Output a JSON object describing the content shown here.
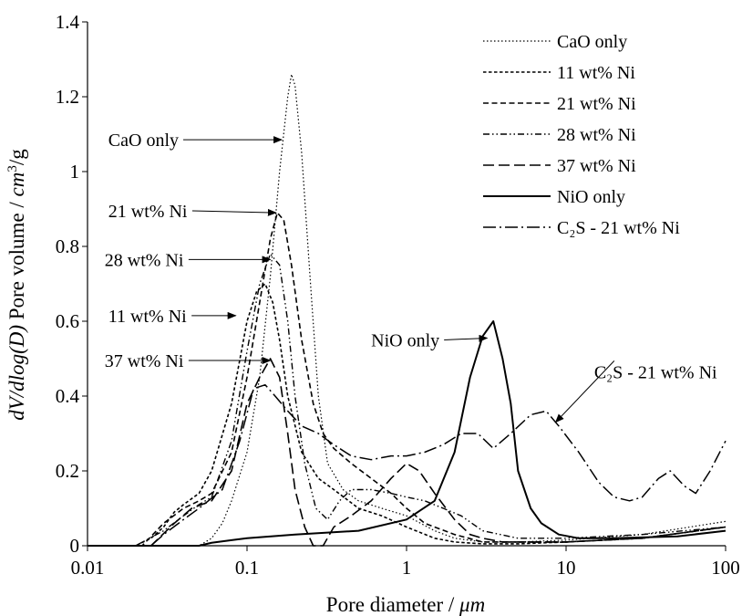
{
  "chart_data": {
    "type": "line",
    "title": "",
    "xlabel_prefix": "Pore diameter / ",
    "xlabel_unit": "μm",
    "ylabel_main": "dV/dlog(D)",
    "ylabel_mid": " Pore volume / ",
    "ylabel_unit": "cm",
    "ylabel_sup": "3",
    "ylabel_tail": "/g",
    "x_scale": "log",
    "xlim": [
      0.01,
      100
    ],
    "ylim": [
      0,
      1.4
    ],
    "x_ticks": [
      0.01,
      0.1,
      1,
      10,
      100
    ],
    "x_tick_labels": [
      "0.01",
      "0.1",
      "1",
      "10",
      "100"
    ],
    "y_ticks": [
      0,
      0.2,
      0.4,
      0.6,
      0.8,
      1,
      1.2,
      1.4
    ],
    "y_tick_labels": [
      "0",
      "0.2",
      "0.4",
      "0.6",
      "0.8",
      "1",
      "1.2",
      "1.4"
    ],
    "grid": false,
    "legend_position": "top-right",
    "series": [
      {
        "name": "CaO only",
        "dash": "1.5,2.5",
        "width": 1.2,
        "x": [
          0.01,
          0.05,
          0.06,
          0.07,
          0.08,
          0.1,
          0.12,
          0.14,
          0.16,
          0.18,
          0.19,
          0.2,
          0.22,
          0.25,
          0.28,
          0.32,
          0.4,
          0.5,
          0.7,
          1,
          1.5,
          2,
          3,
          5,
          10,
          30,
          100
        ],
        "y": [
          0,
          0,
          0.02,
          0.06,
          0.12,
          0.25,
          0.45,
          0.72,
          1.0,
          1.2,
          1.26,
          1.23,
          1.05,
          0.7,
          0.4,
          0.22,
          0.15,
          0.12,
          0.1,
          0.08,
          0.04,
          0.02,
          0.01,
          0.01,
          0.015,
          0.03,
          0.065
        ]
      },
      {
        "name": "11 wt% Ni",
        "dash": "3.5,2.5",
        "width": 1.6,
        "x": [
          0.01,
          0.02,
          0.025,
          0.03,
          0.035,
          0.04,
          0.05,
          0.06,
          0.08,
          0.1,
          0.115,
          0.13,
          0.145,
          0.16,
          0.18,
          0.22,
          0.28,
          0.35,
          0.5,
          0.7,
          1,
          1.5,
          2,
          3,
          5,
          10,
          30,
          100
        ],
        "y": [
          0,
          0,
          0.02,
          0.05,
          0.09,
          0.11,
          0.14,
          0.2,
          0.38,
          0.6,
          0.68,
          0.7,
          0.65,
          0.55,
          0.4,
          0.25,
          0.18,
          0.15,
          0.1,
          0.08,
          0.05,
          0.02,
          0.01,
          0.005,
          0.005,
          0.01,
          0.02,
          0.05
        ]
      },
      {
        "name": "21 wt% Ni",
        "dash": "6,3.5",
        "width": 1.6,
        "x": [
          0.01,
          0.022,
          0.03,
          0.04,
          0.05,
          0.06,
          0.08,
          0.1,
          0.12,
          0.14,
          0.155,
          0.17,
          0.19,
          0.22,
          0.26,
          0.3,
          0.35,
          0.45,
          0.6,
          0.8,
          1,
          1.3,
          2,
          3,
          5,
          10,
          30,
          100
        ],
        "y": [
          0,
          0,
          0.06,
          0.1,
          0.12,
          0.14,
          0.25,
          0.45,
          0.65,
          0.82,
          0.89,
          0.87,
          0.75,
          0.55,
          0.38,
          0.3,
          0.26,
          0.22,
          0.18,
          0.14,
          0.1,
          0.06,
          0.03,
          0.01,
          0.01,
          0.01,
          0.02,
          0.05
        ]
      },
      {
        "name": "28 wt% Ni",
        "dash": "7,3,1.5,3,1.5,3",
        "width": 1.4,
        "x": [
          0.01,
          0.02,
          0.03,
          0.04,
          0.05,
          0.06,
          0.08,
          0.1,
          0.12,
          0.14,
          0.16,
          0.18,
          0.2,
          0.23,
          0.27,
          0.32,
          0.38,
          0.45,
          0.6,
          0.8,
          1,
          1.3,
          1.7,
          2.2,
          3,
          5,
          10,
          30,
          100
        ],
        "y": [
          0,
          0,
          0.04,
          0.08,
          0.11,
          0.13,
          0.28,
          0.52,
          0.7,
          0.78,
          0.75,
          0.6,
          0.4,
          0.22,
          0.1,
          0.07,
          0.12,
          0.15,
          0.15,
          0.14,
          0.13,
          0.12,
          0.1,
          0.08,
          0.04,
          0.02,
          0.02,
          0.03,
          0.05
        ]
      },
      {
        "name": "37 wt% Ni",
        "dash": "12,5",
        "width": 1.6,
        "x": [
          0.01,
          0.025,
          0.035,
          0.045,
          0.06,
          0.08,
          0.1,
          0.12,
          0.14,
          0.16,
          0.18,
          0.2,
          0.23,
          0.26,
          0.3,
          0.35,
          0.45,
          0.6,
          0.8,
          1,
          1.2,
          1.5,
          2,
          2.5,
          3,
          4,
          6,
          10,
          30,
          100
        ],
        "y": [
          0,
          0,
          0.06,
          0.1,
          0.12,
          0.2,
          0.38,
          0.45,
          0.5,
          0.45,
          0.3,
          0.15,
          0.05,
          0.0,
          0.0,
          0.05,
          0.08,
          0.12,
          0.18,
          0.22,
          0.2,
          0.14,
          0.07,
          0.03,
          0.02,
          0.01,
          0.01,
          0.01,
          0.02,
          0.05
        ]
      },
      {
        "name": "NiO only",
        "dash": "",
        "width": 2.0,
        "x": [
          0.01,
          0.05,
          0.06,
          0.08,
          0.1,
          0.2,
          0.5,
          1,
          1.5,
          2,
          2.5,
          3,
          3.5,
          4,
          4.5,
          5,
          6,
          7,
          9,
          12,
          20,
          50,
          100
        ],
        "y": [
          0,
          0,
          0.008,
          0.015,
          0.02,
          0.03,
          0.04,
          0.07,
          0.12,
          0.25,
          0.45,
          0.56,
          0.6,
          0.5,
          0.38,
          0.2,
          0.1,
          0.06,
          0.03,
          0.02,
          0.02,
          0.025,
          0.04
        ]
      },
      {
        "name": "C₂S - 21 wt% Ni",
        "dash": "14,4,2,4",
        "width": 1.5,
        "x": [
          0.01,
          0.025,
          0.03,
          0.04,
          0.05,
          0.07,
          0.09,
          0.11,
          0.13,
          0.15,
          0.18,
          0.22,
          0.28,
          0.35,
          0.45,
          0.6,
          0.8,
          1,
          1.3,
          1.7,
          2.2,
          2.8,
          3.5,
          4.5,
          6,
          7.5,
          9,
          12,
          16,
          20,
          25,
          30,
          38,
          45,
          55,
          65,
          80,
          100
        ],
        "y": [
          0,
          0,
          0.03,
          0.07,
          0.1,
          0.15,
          0.28,
          0.42,
          0.43,
          0.4,
          0.36,
          0.32,
          0.3,
          0.27,
          0.24,
          0.23,
          0.24,
          0.24,
          0.25,
          0.27,
          0.3,
          0.3,
          0.26,
          0.3,
          0.35,
          0.36,
          0.32,
          0.25,
          0.17,
          0.13,
          0.12,
          0.13,
          0.18,
          0.2,
          0.16,
          0.14,
          0.2,
          0.28
        ]
      }
    ],
    "annotations": [
      {
        "name": "CaO only",
        "text": "CaO only",
        "tx": 0.0135,
        "ty": 1.085,
        "ax": 0.165,
        "ay": 1.085
      },
      {
        "name": "21 wt% Ni",
        "text": "21 wt% Ni",
        "tx": 0.0135,
        "ty": 0.895,
        "ax": 0.152,
        "ay": 0.89
      },
      {
        "name": "28 wt% Ni",
        "text": "28 wt% Ni",
        "tx": 0.0128,
        "ty": 0.765,
        "ax": 0.14,
        "ay": 0.765
      },
      {
        "name": "11 wt% Ni",
        "text": "11 wt% Ni",
        "tx": 0.0135,
        "ty": 0.615,
        "ax": 0.085,
        "ay": 0.615
      },
      {
        "name": "37 wt% Ni",
        "text": "37 wt% Ni",
        "tx": 0.0128,
        "ty": 0.495,
        "ax": 0.14,
        "ay": 0.495
      },
      {
        "name": "NiO only",
        "text": "NiO only",
        "tx": 0.6,
        "ty": 0.55,
        "ax": 3.2,
        "ay": 0.555
      },
      {
        "name": "C₂S - 21 wt% Ni",
        "text": "C₂S - 21 wt% Ni",
        "tx": 15,
        "ty": 0.465,
        "ax": 8.6,
        "ay": 0.33
      }
    ]
  }
}
